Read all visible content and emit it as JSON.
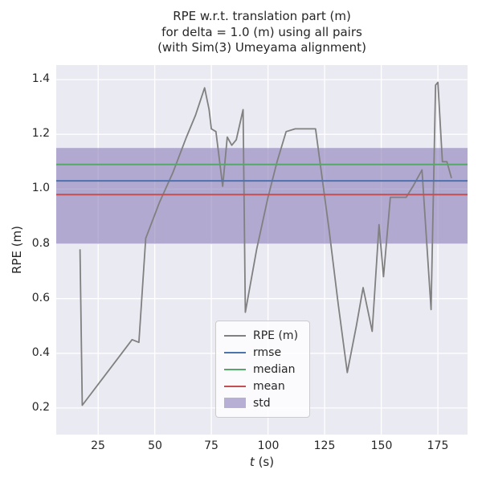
{
  "chart_data": {
    "type": "line",
    "title_lines": [
      "RPE w.r.t. translation part (m)",
      "for delta = 1.0 (m) using all pairs",
      "(with Sim(3) Umeyama alignment)"
    ],
    "xlabel_var": "t",
    "xlabel_rest": " (s)",
    "ylabel": "RPE (m)",
    "xlim": [
      6.5,
      188.1
    ],
    "ylim": [
      0.103,
      1.453
    ],
    "xticks": [
      25,
      50,
      75,
      100,
      125,
      150,
      175
    ],
    "yticks": [
      0.2,
      0.4,
      0.6,
      0.8,
      1.0,
      1.2,
      1.4
    ],
    "grid": true,
    "legend_position": "lower center-right",
    "colors": {
      "figure_background": "#FFFFFF",
      "axes_background": "#EAEAF2",
      "grid": "#FFFFFF",
      "rpe": "#808080",
      "rmse": "#4C72B0",
      "median": "#55A868",
      "mean": "#C44E52",
      "std": "#8172B2",
      "text": "#262626"
    },
    "series": [
      {
        "name": "RPE (m)",
        "color": "#808080",
        "points": [
          [
            17,
            0.78
          ],
          [
            18,
            0.21
          ],
          [
            40,
            0.45
          ],
          [
            43,
            0.44
          ],
          [
            46,
            0.82
          ],
          [
            52,
            0.95
          ],
          [
            58,
            1.06
          ],
          [
            64,
            1.19
          ],
          [
            68,
            1.27
          ],
          [
            72,
            1.37
          ],
          [
            74,
            1.29
          ],
          [
            75,
            1.22
          ],
          [
            77,
            1.21
          ],
          [
            80,
            1.01
          ],
          [
            82,
            1.19
          ],
          [
            84,
            1.16
          ],
          [
            86,
            1.18
          ],
          [
            89,
            1.29
          ],
          [
            90,
            0.55
          ],
          [
            95,
            0.78
          ],
          [
            100,
            0.97
          ],
          [
            104,
            1.1
          ],
          [
            108,
            1.21
          ],
          [
            112,
            1.22
          ],
          [
            121,
            1.22
          ],
          [
            127,
            0.85
          ],
          [
            131,
            0.58
          ],
          [
            135,
            0.33
          ],
          [
            139,
            0.5
          ],
          [
            142,
            0.64
          ],
          [
            146,
            0.48
          ],
          [
            149,
            0.87
          ],
          [
            151,
            0.68
          ],
          [
            154,
            0.97
          ],
          [
            161,
            0.97
          ],
          [
            164,
            1.01
          ],
          [
            168,
            1.07
          ],
          [
            172,
            0.56
          ],
          [
            174,
            1.38
          ],
          [
            175,
            1.39
          ],
          [
            177,
            1.1
          ],
          [
            179,
            1.1
          ],
          [
            181,
            1.04
          ]
        ]
      }
    ],
    "stat_lines": [
      {
        "name": "rmse",
        "value": 1.03,
        "color": "#4C72B0"
      },
      {
        "name": "median",
        "value": 1.09,
        "color": "#55A868"
      },
      {
        "name": "mean",
        "value": 0.98,
        "color": "#C44E52"
      }
    ],
    "std_band": {
      "name": "std",
      "lower": 0.8,
      "upper": 1.15,
      "color": "#8172B2",
      "opacity": 0.55
    },
    "legend": {
      "items": [
        {
          "label": "RPE (m)",
          "type": "line",
          "color": "#808080"
        },
        {
          "label": "rmse",
          "type": "line",
          "color": "#4C72B0"
        },
        {
          "label": "median",
          "type": "line",
          "color": "#55A868"
        },
        {
          "label": "mean",
          "type": "line",
          "color": "#C44E52"
        },
        {
          "label": "std",
          "type": "patch",
          "color": "#8172B2"
        }
      ]
    }
  }
}
